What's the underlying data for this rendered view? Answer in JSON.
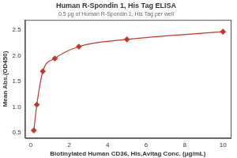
{
  "chart_data": {
    "type": "scatter",
    "title": "Human R-Spondin 1, His Tag ELISA",
    "subtitle": "0.5 μg of Human R-Spondin 1, His Tag per well",
    "x_label": "Biotinylated Human CD36, His,Avitag Conc. (μg/mL)",
    "y_label": "Mean Abs.(OD450)",
    "x": [
      0.156,
      0.3125,
      0.625,
      1.25,
      2.5,
      5,
      10
    ],
    "values": [
      0.55,
      1.05,
      1.7,
      1.95,
      2.18,
      2.32,
      2.47
    ],
    "color": "#c0392b",
    "marker": "diamond",
    "line_style": "solid",
    "xlim": [
      -0.3,
      10.4
    ],
    "xticks": [
      0,
      2,
      4,
      6,
      8,
      10
    ],
    "ylim": [
      0.4,
      2.7
    ],
    "yticks": [
      {
        "value": 0.5,
        "label": "0.5"
      },
      {
        "value": 1.0,
        "label": "1.0"
      },
      {
        "value": 1.5,
        "label": "1.5"
      },
      {
        "value": 2.0,
        "label": "2.0"
      },
      {
        "value": 2.5,
        "label": "2.5"
      }
    ],
    "grid": false
  }
}
